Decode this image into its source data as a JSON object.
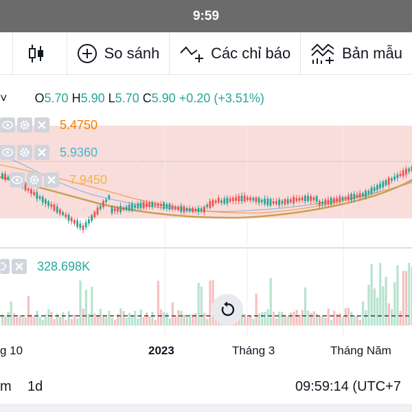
{
  "status_bar": {
    "time": "9:59"
  },
  "toolbar": {
    "compare_label": "So sánh",
    "indicators_label": "Các chỉ báo",
    "templates_label": "Bản mẫu"
  },
  "legend": {
    "o_key": "O",
    "o_val": "5.70",
    "h_key": "H",
    "h_val": "5.90",
    "l_key": "L",
    "l_val": "5.70",
    "c_key": "C",
    "c_val": "5.90",
    "change": "+0.20 (+3.51%)"
  },
  "indicators": [
    {
      "value": "5.4750",
      "color": "#f57c00"
    },
    {
      "value": "5.9360",
      "color": "#42b4d6"
    },
    {
      "value": "7.9450",
      "color": "#f5b342"
    }
  ],
  "volume": {
    "value": "328.698K",
    "color": "#26a69a"
  },
  "time_axis": [
    "g 10",
    "2023",
    "Tháng 3",
    "Tháng Năm"
  ],
  "bottom_bar": {
    "range": "m",
    "interval": "1d",
    "clock": "09:59:14 (UTC+7"
  },
  "colors": {
    "up": "#26a69a",
    "down": "#ef5350",
    "zone": "#f8d7d3"
  }
}
